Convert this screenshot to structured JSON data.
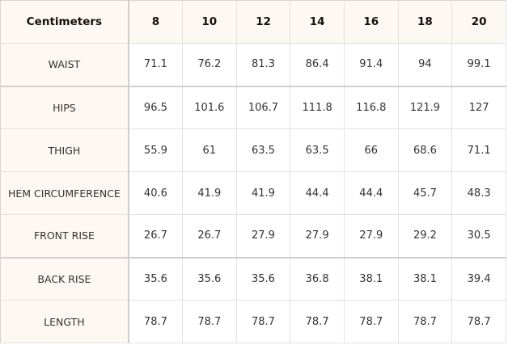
{
  "table": {
    "corner_label": "Centimeters",
    "columns": [
      "8",
      "10",
      "12",
      "14",
      "16",
      "18",
      "20"
    ],
    "rows": [
      {
        "label": "WAIST",
        "values": [
          "71.1",
          "76.2",
          "81.3",
          "86.4",
          "91.4",
          "94",
          "99.1"
        ]
      },
      {
        "label": "HIPS",
        "values": [
          "96.5",
          "101.6",
          "106.7",
          "111.8",
          "116.8",
          "121.9",
          "127"
        ]
      },
      {
        "label": "THIGH",
        "values": [
          "55.9",
          "61",
          "63.5",
          "63.5",
          "66",
          "68.6",
          "71.1"
        ]
      },
      {
        "label": "HEM CIRCUMFERENCE",
        "values": [
          "40.6",
          "41.9",
          "41.9",
          "44.4",
          "44.4",
          "45.7",
          "48.3"
        ]
      },
      {
        "label": "FRONT RISE",
        "values": [
          "26.7",
          "26.7",
          "27.9",
          "27.9",
          "27.9",
          "29.2",
          "30.5"
        ]
      },
      {
        "label": "BACK RISE",
        "values": [
          "35.6",
          "35.6",
          "35.6",
          "36.8",
          "38.1",
          "38.1",
          "39.4"
        ]
      },
      {
        "label": "LENGTH",
        "values": [
          "78.7",
          "78.7",
          "78.7",
          "78.7",
          "78.7",
          "78.7",
          "78.7"
        ]
      }
    ]
  }
}
